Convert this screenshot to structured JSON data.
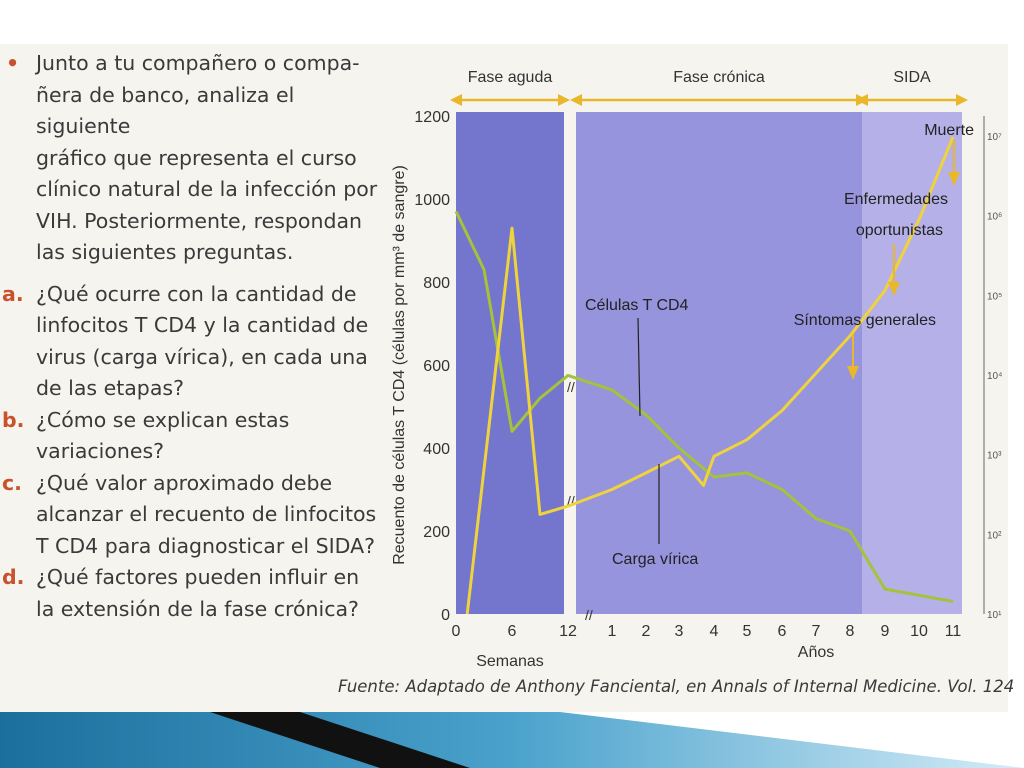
{
  "intro_marker": "•",
  "intro": [
    "Junto a tu compañero o compa-",
    "ñera de banco, analiza el siguiente",
    "gráfico que representa el curso",
    "clínico natural de la infección por",
    "VIH. Posteriormente, respondan",
    "las siguientes preguntas."
  ],
  "questions": [
    {
      "marker": "a.",
      "lines": [
        "¿Qué ocurre con la cantidad de",
        "linfocitos T CD4 y la cantidad de",
        "virus (carga vírica), en cada una",
        "de las etapas?"
      ]
    },
    {
      "marker": "b.",
      "lines": [
        "¿Cómo se explican estas",
        "variaciones?"
      ]
    },
    {
      "marker": "c.",
      "lines": [
        "¿Qué valor aproximado debe",
        "alcanzar el recuento de linfocitos",
        "T CD4 para diagnosticar el SIDA?"
      ]
    },
    {
      "marker": "d.",
      "lines": [
        "¿Qué factores pueden influir en",
        "la extensión de la fase crónica?"
      ]
    }
  ],
  "source": "Fuente: Adaptado de Anthony Fanciental, en Annals of Internal Medicine. Vol. 124",
  "chart_data": {
    "type": "line",
    "ylabel": "Recuento de células T CD4 (células por mm³ de sangre)",
    "ylim": [
      0,
      1200
    ],
    "yticks": [
      0,
      200,
      400,
      600,
      800,
      1000,
      1200
    ],
    "xticks": [
      "0",
      "6",
      "12",
      "1",
      "2",
      "3",
      "4",
      "5",
      "6",
      "7",
      "8",
      "9",
      "10",
      "11"
    ],
    "xlabel_weeks": "Semanas",
    "xlabel_years": "Años",
    "right_axis_labels": [
      "10⁷",
      "10⁶",
      "10⁵",
      "10⁴",
      "10³",
      "10²",
      "10¹"
    ],
    "phases": [
      {
        "name": "Fase aguda",
        "from": 0,
        "to": 2,
        "color": "#7376cc"
      },
      {
        "name": "Fase crónica",
        "from": 2,
        "to": 10,
        "color": "#9594dc"
      },
      {
        "name": "SIDA",
        "from": 10,
        "to": 13,
        "color": "#b5b1e8"
      }
    ],
    "series": [
      {
        "name": "Células T CD4",
        "color": "#a6c13c",
        "x": [
          0,
          0.5,
          1,
          1.5,
          2,
          3,
          4,
          5,
          6,
          7,
          8,
          9,
          10,
          11,
          12,
          13
        ],
        "y": [
          970,
          830,
          440,
          520,
          575,
          540,
          480,
          400,
          330,
          340,
          300,
          230,
          200,
          60,
          45,
          30
        ]
      },
      {
        "name": "Carga vírica",
        "color": "#f0d23c",
        "x": [
          0.2,
          1,
          1.5,
          2,
          3,
          4,
          5,
          5.7,
          6,
          7,
          8,
          9,
          10,
          11,
          12,
          13
        ],
        "y": [
          0,
          930,
          240,
          260,
          300,
          340,
          380,
          310,
          380,
          420,
          490,
          580,
          670,
          780,
          950,
          1150
        ]
      }
    ],
    "annotations": [
      {
        "text": "Muerte",
        "x": 13,
        "y": 1190,
        "target_y": 1050
      },
      {
        "text": "Enfermedades",
        "x": 12.7,
        "y": 1000,
        "target_y": null
      },
      {
        "text": "oportunistas",
        "x": 12.7,
        "y": 945,
        "target_y": null
      },
      {
        "text": "Síntomas generales",
        "x": 10.6,
        "y": 710,
        "target_y": null
      }
    ]
  }
}
